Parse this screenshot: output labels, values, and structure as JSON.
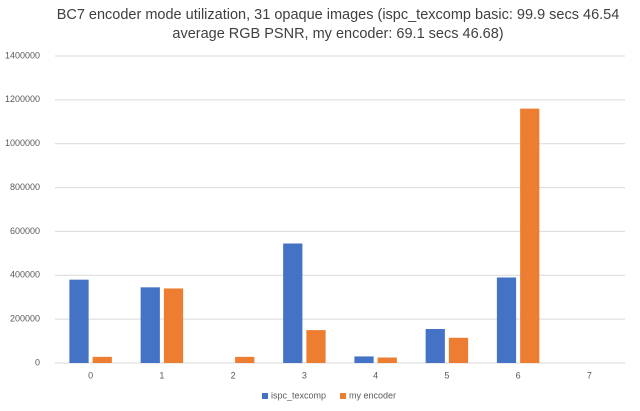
{
  "chart_data": {
    "type": "bar",
    "title": [
      "BC7 encoder mode utilization, 31 opaque images (ispc_texcomp basic: 99.9 secs 46.54",
      "average RGB PSNR, my encoder: 69.1 secs 46.68)"
    ],
    "categories": [
      "0",
      "1",
      "2",
      "3",
      "4",
      "5",
      "6",
      "7"
    ],
    "series": [
      {
        "name": "ispc_texcomp",
        "color": "#4472c4",
        "values": [
          380000,
          345000,
          0,
          545000,
          30000,
          155000,
          390000,
          0
        ]
      },
      {
        "name": "my encoder",
        "color": "#ed7d31",
        "values": [
          28000,
          340000,
          28000,
          150000,
          25000,
          115000,
          1160000,
          0
        ]
      }
    ],
    "ylim": [
      0,
      1400000
    ],
    "yticks": [
      0,
      200000,
      400000,
      600000,
      800000,
      1000000,
      1200000,
      1400000
    ],
    "grid": true,
    "legend": "bottom"
  }
}
